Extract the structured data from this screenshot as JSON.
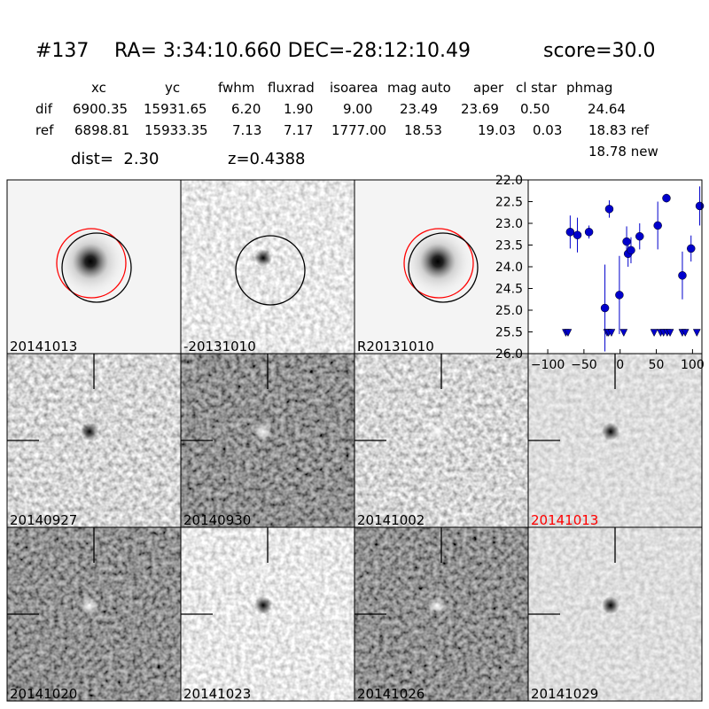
{
  "header": {
    "id": "#137",
    "coords": "RA= 3:34:10.660 DEC=-28:12:10.49",
    "score": "score=30.0",
    "dist": "dist=  2.30",
    "z": "z=0.4388"
  },
  "table": {
    "columns": [
      "xc",
      "yc",
      "fwhm",
      "fluxrad",
      "isoarea",
      "mag auto",
      "aper",
      "cl star",
      "phmag"
    ],
    "rows": [
      [
        "dif",
        "6900.35",
        "15931.65",
        "6.20",
        "1.90",
        "9.00",
        "23.49",
        "23.69",
        "0.50",
        "24.64"
      ],
      [
        "ref",
        "6898.81",
        "15933.35",
        "7.13",
        "7.17",
        "1777.00",
        "18.53",
        "19.03",
        "0.03",
        "18.83 ref"
      ]
    ],
    "extra": "18.78 new"
  },
  "panels": [
    "20141013",
    "-20131010",
    "R20131010",
    "20140927",
    "20140930",
    "20141002",
    "20141013",
    "20141020",
    "20141023",
    "20141026",
    "20141029"
  ],
  "chart_data": {
    "type": "lightcurve",
    "color": "#0000cc",
    "xlim": [
      -127,
      113
    ],
    "ylim": [
      26.0,
      22.0
    ],
    "xticks": [
      {
        "value": -100,
        "label": "−100"
      },
      {
        "value": -50,
        "label": "−50"
      },
      0,
      50,
      100
    ],
    "yticks": [
      {
        "value": 22.0,
        "label": "22.0"
      },
      {
        "value": 22.5,
        "label": "22.5"
      },
      {
        "value": 23.0,
        "label": "23.0"
      },
      {
        "value": 23.5,
        "label": "23.5"
      },
      {
        "value": 24.0,
        "label": "24.0"
      },
      {
        "value": 24.5,
        "label": "24.5"
      },
      {
        "value": 25.0,
        "label": "25.0"
      },
      {
        "value": 25.5,
        "label": "25.5"
      },
      {
        "value": 26.0,
        "label": "26.0"
      }
    ],
    "points": {
      "x": [
        -69,
        -59,
        -43,
        -21,
        -15,
        -1,
        9,
        11,
        15,
        27,
        52,
        64,
        86,
        98,
        110
      ],
      "values": [
        23.2,
        23.27,
        23.2,
        24.95,
        22.67,
        24.65,
        23.42,
        23.7,
        23.62,
        23.3,
        23.05,
        22.42,
        24.2,
        23.58,
        22.6
      ],
      "errors": [
        0.38,
        0.4,
        0.15,
        1.0,
        0.2,
        0.9,
        0.35,
        0.3,
        0.3,
        0.3,
        0.55,
        0.1,
        0.55,
        0.3,
        0.45
      ]
    },
    "upper_limits": {
      "x": [
        -75,
        -72,
        -18,
        -16,
        -12,
        5,
        47,
        56,
        60,
        65,
        69,
        86,
        90,
        106
      ],
      "values": [
        25.5,
        25.5,
        25.5,
        25.5,
        25.5,
        25.5,
        25.5,
        25.5,
        25.5,
        25.5,
        25.5,
        25.5,
        25.5,
        25.5
      ]
    }
  }
}
